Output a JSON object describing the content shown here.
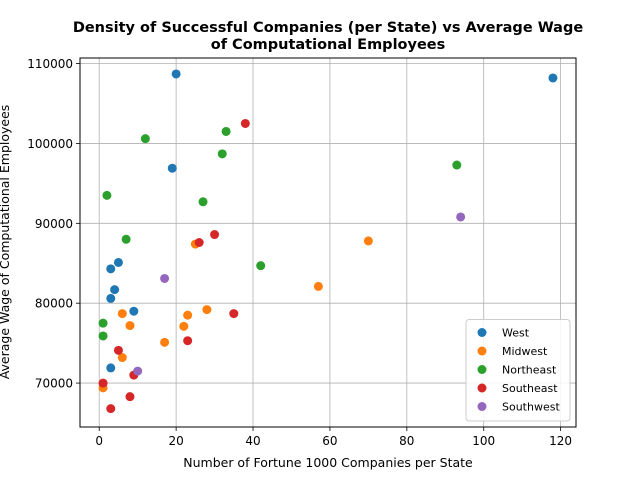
{
  "chart_data": {
    "type": "scatter",
    "title": "Density of Successful Companies (per State) vs Average Wage\nof Computational Employees",
    "xlabel": "Number of Fortune 1000 Companies per State",
    "ylabel": "Average Wage of Computational Employees",
    "xlim": [
      -5,
      124
    ],
    "ylim": [
      64500,
      110700
    ],
    "xticks": [
      0,
      20,
      40,
      60,
      80,
      100,
      120
    ],
    "yticks": [
      70000,
      80000,
      90000,
      100000,
      110000
    ],
    "grid": true,
    "legend_position": "lower right",
    "series": [
      {
        "name": "West",
        "color": "#1f77b4",
        "points": [
          [
            20,
            108700
          ],
          [
            118,
            108200
          ],
          [
            19,
            96900
          ],
          [
            5,
            85100
          ],
          [
            3,
            84300
          ],
          [
            4,
            81700
          ],
          [
            3,
            80600
          ],
          [
            9,
            79000
          ],
          [
            3,
            71900
          ]
        ]
      },
      {
        "name": "Midwest",
        "color": "#ff7f0e",
        "points": [
          [
            70,
            87800
          ],
          [
            25,
            87400
          ],
          [
            57,
            82100
          ],
          [
            28,
            79200
          ],
          [
            6,
            78700
          ],
          [
            23,
            78500
          ],
          [
            8,
            77200
          ],
          [
            22,
            77100
          ],
          [
            17,
            75100
          ],
          [
            6,
            73200
          ],
          [
            1,
            69400
          ]
        ]
      },
      {
        "name": "Northeast",
        "color": "#2ca02c",
        "points": [
          [
            12,
            100600
          ],
          [
            33,
            101500
          ],
          [
            32,
            98700
          ],
          [
            93,
            97300
          ],
          [
            2,
            93500
          ],
          [
            27,
            92700
          ],
          [
            7,
            88000
          ],
          [
            42,
            84700
          ],
          [
            1,
            77500
          ],
          [
            1,
            75900
          ]
        ]
      },
      {
        "name": "Southeast",
        "color": "#d62728",
        "points": [
          [
            38,
            102500
          ],
          [
            30,
            88600
          ],
          [
            26,
            87600
          ],
          [
            35,
            78700
          ],
          [
            23,
            75300
          ],
          [
            5,
            74100
          ],
          [
            9,
            71000
          ],
          [
            1,
            70000
          ],
          [
            8,
            68300
          ],
          [
            3,
            66800
          ]
        ]
      },
      {
        "name": "Southwest",
        "color": "#9467bd",
        "points": [
          [
            94,
            90800
          ],
          [
            17,
            83100
          ],
          [
            10,
            71500
          ]
        ]
      }
    ]
  }
}
